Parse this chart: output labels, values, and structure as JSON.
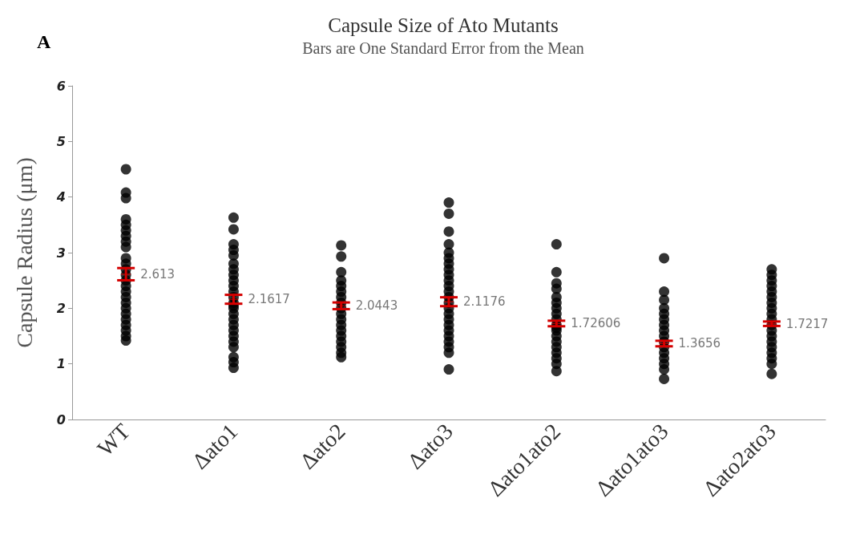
{
  "chart_data": {
    "type": "scatter",
    "title": "Capsule Size of Ato Mutants",
    "subtitle": "Bars are One Standard Error from the Mean",
    "ylabel": "Capsule Radius (μm)",
    "annotations": [
      "A"
    ],
    "categories": [
      "WT",
      "Δato1",
      "Δato2",
      "Δato3",
      "Δato1ato2",
      "Δato1ato3",
      "Δato2ato3"
    ],
    "ylim": [
      0,
      6
    ],
    "yticks": [
      0,
      1,
      2,
      3,
      4,
      5,
      6
    ],
    "grid": false,
    "marker": "circle",
    "series": [
      {
        "color": "#000000",
        "x": [
          "WT",
          "WT",
          "WT",
          "WT",
          "WT",
          "WT",
          "WT",
          "WT",
          "WT",
          "WT",
          "WT",
          "WT",
          "WT",
          "WT",
          "WT",
          "WT",
          "WT",
          "WT",
          "WT",
          "WT",
          "WT",
          "WT",
          "WT",
          "WT",
          "WT",
          "Δato1",
          "Δato1",
          "Δato1",
          "Δato1",
          "Δato1",
          "Δato1",
          "Δato1",
          "Δato1",
          "Δato1",
          "Δato1",
          "Δato1",
          "Δato1",
          "Δato1",
          "Δato1",
          "Δato1",
          "Δato1",
          "Δato1",
          "Δato1",
          "Δato1",
          "Δato1",
          "Δato1",
          "Δato1",
          "Δato1",
          "Δato1",
          "Δato1",
          "Δato2",
          "Δato2",
          "Δato2",
          "Δato2",
          "Δato2",
          "Δato2",
          "Δato2",
          "Δato2",
          "Δato2",
          "Δato2",
          "Δato2",
          "Δato2",
          "Δato2",
          "Δato2",
          "Δato2",
          "Δato2",
          "Δato2",
          "Δato2",
          "Δato3",
          "Δato3",
          "Δato3",
          "Δato3",
          "Δato3",
          "Δato3",
          "Δato3",
          "Δato3",
          "Δato3",
          "Δato3",
          "Δato3",
          "Δato3",
          "Δato3",
          "Δato3",
          "Δato3",
          "Δato3",
          "Δato3",
          "Δato3",
          "Δato3",
          "Δato3",
          "Δato3",
          "Δato3",
          "Δato3",
          "Δato3",
          "Δato1ato2",
          "Δato1ato2",
          "Δato1ato2",
          "Δato1ato2",
          "Δato1ato2",
          "Δato1ato2",
          "Δato1ato2",
          "Δato1ato2",
          "Δato1ato2",
          "Δato1ato2",
          "Δato1ato2",
          "Δato1ato2",
          "Δato1ato2",
          "Δato1ato2",
          "Δato1ato2",
          "Δato1ato2",
          "Δato1ato2",
          "Δato1ato2",
          "Δato1ato2",
          "Δato1ato3",
          "Δato1ato3",
          "Δato1ato3",
          "Δato1ato3",
          "Δato1ato3",
          "Δato1ato3",
          "Δato1ato3",
          "Δato1ato3",
          "Δato1ato3",
          "Δato1ato3",
          "Δato1ato3",
          "Δato1ato3",
          "Δato1ato3",
          "Δato1ato3",
          "Δato1ato3",
          "Δato1ato3",
          "Δato2ato3",
          "Δato2ato3",
          "Δato2ato3",
          "Δato2ato3",
          "Δato2ato3",
          "Δato2ato3",
          "Δato2ato3",
          "Δato2ato3",
          "Δato2ato3",
          "Δato2ato3",
          "Δato2ato3",
          "Δato2ato3",
          "Δato2ato3",
          "Δato2ato3",
          "Δato2ato3",
          "Δato2ato3",
          "Δato2ato3",
          "Δato2ato3",
          "Δato2ato3"
        ],
        "values": [
          4.5,
          4.08,
          3.98,
          3.6,
          3.5,
          3.4,
          3.3,
          3.2,
          3.1,
          2.9,
          2.8,
          2.7,
          2.6,
          2.5,
          2.4,
          2.3,
          2.2,
          2.1,
          2.0,
          1.9,
          1.8,
          1.7,
          1.6,
          1.5,
          1.42,
          3.63,
          3.42,
          3.15,
          3.05,
          2.95,
          2.8,
          2.7,
          2.6,
          2.5,
          2.4,
          2.3,
          2.2,
          2.1,
          2.05,
          2.0,
          1.9,
          1.8,
          1.7,
          1.6,
          1.5,
          1.4,
          1.3,
          1.12,
          1.03,
          0.93,
          3.13,
          2.93,
          2.65,
          2.5,
          2.4,
          2.3,
          2.2,
          2.1,
          2.0,
          1.9,
          1.8,
          1.7,
          1.6,
          1.5,
          1.4,
          1.3,
          1.2,
          1.12,
          3.9,
          3.7,
          3.38,
          3.15,
          3.0,
          2.9,
          2.8,
          2.7,
          2.6,
          2.5,
          2.4,
          2.3,
          2.2,
          2.1,
          2.0,
          1.9,
          1.8,
          1.7,
          1.6,
          1.5,
          1.4,
          1.3,
          1.2,
          0.9,
          3.15,
          2.65,
          2.45,
          2.35,
          2.2,
          2.1,
          2.0,
          1.9,
          1.8,
          1.7,
          1.65,
          1.6,
          1.5,
          1.4,
          1.3,
          1.2,
          1.1,
          1.0,
          0.87,
          2.9,
          2.3,
          2.15,
          2.0,
          1.9,
          1.8,
          1.7,
          1.6,
          1.5,
          1.4,
          1.3,
          1.2,
          1.1,
          1.0,
          0.9,
          0.73,
          2.7,
          2.6,
          2.5,
          2.4,
          2.3,
          2.2,
          2.1,
          2.0,
          1.9,
          1.8,
          1.7,
          1.6,
          1.5,
          1.4,
          1.3,
          1.2,
          1.1,
          1.0,
          0.82
        ]
      },
      {
        "color": "#d40000",
        "marker": "cross",
        "values": [
          2.613,
          2.1617,
          2.0443,
          2.1176,
          1.72606,
          1.3656,
          1.7217
        ],
        "errors": [
          0.11,
          0.08,
          0.06,
          0.08,
          0.05,
          0.05,
          0.04
        ],
        "value_labels": [
          "2.613",
          "2.1617",
          "2.0443",
          "2.1176",
          "1.72606",
          "1.3656",
          "1.7217"
        ]
      }
    ]
  }
}
